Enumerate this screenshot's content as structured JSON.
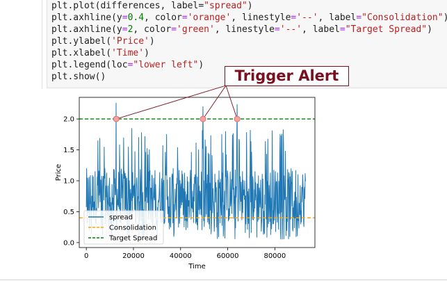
{
  "code_cell": {
    "lines": [
      [
        {
          "t": "plt.plot(differences, label="
        },
        {
          "t": "\"spread\"",
          "c": "str"
        },
        {
          "t": ")"
        }
      ],
      [
        {
          "t": "plt.axhline(y"
        },
        {
          "t": "=",
          "c": "op"
        },
        {
          "t": "0.4",
          "c": "num"
        },
        {
          "t": ", color"
        },
        {
          "t": "=",
          "c": "op"
        },
        {
          "t": "'orange'",
          "c": "str"
        },
        {
          "t": ", linestyle"
        },
        {
          "t": "=",
          "c": "op"
        },
        {
          "t": "'--'",
          "c": "str"
        },
        {
          "t": ", label"
        },
        {
          "t": "=",
          "c": "op"
        },
        {
          "t": "\"Consolidation\"",
          "c": "str"
        },
        {
          "t": ")"
        }
      ],
      [
        {
          "t": "plt.axhline(y"
        },
        {
          "t": "=",
          "c": "op"
        },
        {
          "t": "2",
          "c": "num"
        },
        {
          "t": ", color"
        },
        {
          "t": "=",
          "c": "op"
        },
        {
          "t": "'green'",
          "c": "str"
        },
        {
          "t": ", linestyle"
        },
        {
          "t": "=",
          "c": "op"
        },
        {
          "t": "'--'",
          "c": "str"
        },
        {
          "t": ", label"
        },
        {
          "t": "=",
          "c": "op"
        },
        {
          "t": "\"Target Spread\"",
          "c": "str"
        },
        {
          "t": ")"
        }
      ],
      [
        {
          "t": "plt.ylabel("
        },
        {
          "t": "'Price'",
          "c": "str"
        },
        {
          "t": ")"
        }
      ],
      [
        {
          "t": "plt.xlabel("
        },
        {
          "t": "'Time'",
          "c": "str"
        },
        {
          "t": ")"
        }
      ],
      [
        {
          "t": "plt.legend(loc"
        },
        {
          "t": "=",
          "c": "op"
        },
        {
          "t": "\"lower left\"",
          "c": "str"
        },
        {
          "t": ")"
        }
      ],
      [
        {
          "t": "plt.show()"
        }
      ]
    ]
  },
  "annotation": {
    "text": "Trigger Alert",
    "color": "#7a1020",
    "targets_x": [
      12700,
      49500,
      64000
    ],
    "targets_y": 2.0
  },
  "chart_data": {
    "type": "line",
    "xlabel": "Time",
    "ylabel": "Price",
    "xlim": [
      -3000,
      97000
    ],
    "ylim": [
      -0.08,
      2.35
    ],
    "xticks": [
      0,
      20000,
      40000,
      60000,
      80000
    ],
    "yticks": [
      0.0,
      0.5,
      1.0,
      1.5,
      2.0
    ],
    "ytick_labels": [
      "0.0",
      "0.5",
      "1.0",
      "1.5",
      "2.0"
    ],
    "x_range": [
      0,
      93000
    ],
    "series": [
      {
        "name": "spread",
        "color": "#1f77b4",
        "style": "solid",
        "approx_min": 0.05,
        "approx_max": 2.27,
        "typical_band": [
          0.3,
          1.2
        ]
      }
    ],
    "hlines": [
      {
        "name": "Consolidation",
        "y": 0.4,
        "color": "orange",
        "style": "dashed"
      },
      {
        "name": "Target Spread",
        "y": 2.0,
        "color": "green",
        "style": "dashed"
      }
    ],
    "legend": {
      "loc": "lower left",
      "entries": [
        "spread",
        "Consolidation",
        "Target Spread"
      ]
    }
  }
}
